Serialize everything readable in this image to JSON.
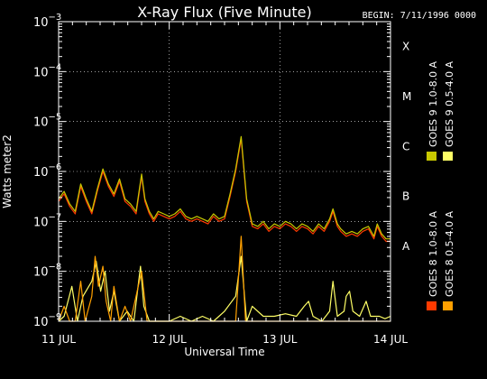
{
  "chart_data": {
    "type": "line",
    "title": "X-Ray Flux (Five Minute)",
    "begin_label": "BEGIN: 7/11/1996 0000",
    "xlabel": "Universal Time",
    "ylabel": "Watts meter2",
    "yscale": "log",
    "ylim": [
      1e-09,
      0.001
    ],
    "x_unit": "days",
    "xlim": [
      0,
      3
    ],
    "x_ticks": [
      {
        "x": 0,
        "label": "11 JUL"
      },
      {
        "x": 1,
        "label": "12 JUL"
      },
      {
        "x": 2,
        "label": "13 JUL"
      },
      {
        "x": 3,
        "label": "14 JUL"
      }
    ],
    "y_ticks": [
      {
        "exp": -9,
        "base": "10",
        "sup": "−9"
      },
      {
        "exp": -8,
        "base": "10",
        "sup": "−8"
      },
      {
        "exp": -7,
        "base": "10",
        "sup": "−7"
      },
      {
        "exp": -6,
        "base": "10",
        "sup": "−6"
      },
      {
        "exp": -5,
        "base": "10",
        "sup": "−5"
      },
      {
        "exp": -4,
        "base": "10",
        "sup": "−4"
      },
      {
        "exp": -3,
        "base": "10",
        "sup": "−3"
      }
    ],
    "flare_classes": [
      {
        "label": "A",
        "exp": -8
      },
      {
        "label": "B",
        "exp": -7
      },
      {
        "label": "C",
        "exp": -6
      },
      {
        "label": "M",
        "exp": -5
      },
      {
        "label": "X",
        "exp": -4
      }
    ],
    "grid": "dotted",
    "legend_placement": "right-vertical",
    "series": [
      {
        "name": "GOES 8 1.0-8.0 A",
        "color": "#ff3a00",
        "points": [
          [
            0,
            -6.6
          ],
          [
            0.05,
            -6.45
          ],
          [
            0.1,
            -6.7
          ],
          [
            0.15,
            -6.85
          ],
          [
            0.2,
            -6.3
          ],
          [
            0.25,
            -6.6
          ],
          [
            0.3,
            -6.85
          ],
          [
            0.35,
            -6.4
          ],
          [
            0.4,
            -6.0
          ],
          [
            0.45,
            -6.3
          ],
          [
            0.5,
            -6.5
          ],
          [
            0.55,
            -6.2
          ],
          [
            0.6,
            -6.6
          ],
          [
            0.65,
            -6.7
          ],
          [
            0.7,
            -6.85
          ],
          [
            0.75,
            -6.1
          ],
          [
            0.78,
            -6.6
          ],
          [
            0.82,
            -6.85
          ],
          [
            0.86,
            -7.0
          ],
          [
            0.9,
            -6.85
          ],
          [
            0.95,
            -6.9
          ],
          [
            1.0,
            -6.95
          ],
          [
            1.05,
            -6.9
          ],
          [
            1.1,
            -6.8
          ],
          [
            1.15,
            -6.95
          ],
          [
            1.2,
            -7.0
          ],
          [
            1.25,
            -6.95
          ],
          [
            1.3,
            -7.0
          ],
          [
            1.35,
            -7.05
          ],
          [
            1.4,
            -6.9
          ],
          [
            1.45,
            -7.0
          ],
          [
            1.5,
            -6.95
          ],
          [
            1.55,
            -6.5
          ],
          [
            1.6,
            -6.0
          ],
          [
            1.65,
            -5.35
          ],
          [
            1.7,
            -6.6
          ],
          [
            1.75,
            -7.1
          ],
          [
            1.8,
            -7.15
          ],
          [
            1.85,
            -7.05
          ],
          [
            1.9,
            -7.2
          ],
          [
            1.95,
            -7.1
          ],
          [
            2.0,
            -7.15
          ],
          [
            2.05,
            -7.05
          ],
          [
            2.1,
            -7.1
          ],
          [
            2.15,
            -7.2
          ],
          [
            2.2,
            -7.1
          ],
          [
            2.25,
            -7.15
          ],
          [
            2.3,
            -7.25
          ],
          [
            2.35,
            -7.1
          ],
          [
            2.4,
            -7.2
          ],
          [
            2.45,
            -7.0
          ],
          [
            2.48,
            -6.8
          ],
          [
            2.52,
            -7.1
          ],
          [
            2.55,
            -7.2
          ],
          [
            2.6,
            -7.3
          ],
          [
            2.65,
            -7.25
          ],
          [
            2.7,
            -7.3
          ],
          [
            2.75,
            -7.2
          ],
          [
            2.8,
            -7.15
          ],
          [
            2.85,
            -7.35
          ],
          [
            2.88,
            -7.1
          ],
          [
            2.92,
            -7.3
          ],
          [
            2.96,
            -7.4
          ],
          [
            3.0,
            -7.4
          ]
        ]
      },
      {
        "name": "GOES 8 0.5-4.0 A",
        "color": "#ffa000",
        "points": [
          [
            0,
            -9.0
          ],
          [
            0.05,
            -8.7
          ],
          [
            0.1,
            -9.0
          ],
          [
            0.15,
            -9.0
          ],
          [
            0.2,
            -8.2
          ],
          [
            0.24,
            -9.0
          ],
          [
            0.3,
            -8.5
          ],
          [
            0.33,
            -7.7
          ],
          [
            0.36,
            -8.3
          ],
          [
            0.4,
            -7.9
          ],
          [
            0.43,
            -8.6
          ],
          [
            0.47,
            -9.0
          ],
          [
            0.5,
            -8.3
          ],
          [
            0.55,
            -9.0
          ],
          [
            0.6,
            -8.7
          ],
          [
            0.65,
            -9.0
          ],
          [
            0.75,
            -8.0
          ],
          [
            0.8,
            -9.0
          ],
          [
            0.9,
            -9.0
          ],
          [
            1.5,
            -9.0
          ],
          [
            1.6,
            -9.0
          ],
          [
            1.65,
            -7.3
          ],
          [
            1.69,
            -9.0
          ],
          [
            3.0,
            -9.0
          ]
        ]
      },
      {
        "name": "GOES 9 0.5-4.0 A",
        "color": "#ffff66",
        "points": [
          [
            0,
            -9.0
          ],
          [
            0.05,
            -8.9
          ],
          [
            0.12,
            -8.3
          ],
          [
            0.17,
            -9.0
          ],
          [
            0.22,
            -8.5
          ],
          [
            0.3,
            -8.2
          ],
          [
            0.34,
            -7.8
          ],
          [
            0.38,
            -8.4
          ],
          [
            0.42,
            -8.0
          ],
          [
            0.46,
            -8.8
          ],
          [
            0.5,
            -8.4
          ],
          [
            0.55,
            -9.0
          ],
          [
            0.62,
            -8.8
          ],
          [
            0.68,
            -9.0
          ],
          [
            0.74,
            -7.9
          ],
          [
            0.77,
            -8.7
          ],
          [
            0.82,
            -9.0
          ],
          [
            0.9,
            -9.0
          ],
          [
            1.0,
            -9.0
          ],
          [
            1.1,
            -8.9
          ],
          [
            1.2,
            -9.0
          ],
          [
            1.3,
            -8.9
          ],
          [
            1.4,
            -9.0
          ],
          [
            1.5,
            -8.8
          ],
          [
            1.6,
            -8.5
          ],
          [
            1.65,
            -7.7
          ],
          [
            1.7,
            -9.0
          ],
          [
            1.75,
            -8.7
          ],
          [
            1.85,
            -8.9
          ],
          [
            1.95,
            -8.9
          ],
          [
            2.05,
            -8.85
          ],
          [
            2.15,
            -8.9
          ],
          [
            2.22,
            -8.7
          ],
          [
            2.26,
            -8.6
          ],
          [
            2.3,
            -8.9
          ],
          [
            2.38,
            -9.0
          ],
          [
            2.45,
            -8.8
          ],
          [
            2.48,
            -8.2
          ],
          [
            2.52,
            -8.9
          ],
          [
            2.58,
            -8.8
          ],
          [
            2.6,
            -8.5
          ],
          [
            2.63,
            -8.4
          ],
          [
            2.66,
            -8.8
          ],
          [
            2.72,
            -8.9
          ],
          [
            2.78,
            -8.6
          ],
          [
            2.82,
            -8.9
          ],
          [
            2.9,
            -8.9
          ],
          [
            2.95,
            -8.95
          ],
          [
            3.0,
            -8.9
          ]
        ]
      },
      {
        "name": "GOES 9 1.0-8.0 A",
        "color": "#c8c800",
        "points": [
          [
            0,
            -6.55
          ],
          [
            0.05,
            -6.4
          ],
          [
            0.1,
            -6.65
          ],
          [
            0.15,
            -6.8
          ],
          [
            0.2,
            -6.25
          ],
          [
            0.25,
            -6.55
          ],
          [
            0.3,
            -6.8
          ],
          [
            0.35,
            -6.35
          ],
          [
            0.4,
            -5.95
          ],
          [
            0.45,
            -6.25
          ],
          [
            0.5,
            -6.45
          ],
          [
            0.55,
            -6.15
          ],
          [
            0.6,
            -6.55
          ],
          [
            0.65,
            -6.65
          ],
          [
            0.7,
            -6.8
          ],
          [
            0.75,
            -6.05
          ],
          [
            0.78,
            -6.55
          ],
          [
            0.82,
            -6.8
          ],
          [
            0.86,
            -6.95
          ],
          [
            0.9,
            -6.8
          ],
          [
            0.95,
            -6.85
          ],
          [
            1.0,
            -6.9
          ],
          [
            1.05,
            -6.85
          ],
          [
            1.1,
            -6.75
          ],
          [
            1.15,
            -6.9
          ],
          [
            1.2,
            -6.95
          ],
          [
            1.25,
            -6.9
          ],
          [
            1.3,
            -6.95
          ],
          [
            1.35,
            -7.0
          ],
          [
            1.4,
            -6.85
          ],
          [
            1.45,
            -6.95
          ],
          [
            1.5,
            -6.9
          ],
          [
            1.55,
            -6.45
          ],
          [
            1.6,
            -5.95
          ],
          [
            1.65,
            -5.3
          ],
          [
            1.7,
            -6.55
          ],
          [
            1.75,
            -7.05
          ],
          [
            1.8,
            -7.1
          ],
          [
            1.85,
            -7.0
          ],
          [
            1.9,
            -7.15
          ],
          [
            1.95,
            -7.05
          ],
          [
            2.0,
            -7.1
          ],
          [
            2.05,
            -7.0
          ],
          [
            2.1,
            -7.05
          ],
          [
            2.15,
            -7.15
          ],
          [
            2.2,
            -7.05
          ],
          [
            2.25,
            -7.1
          ],
          [
            2.3,
            -7.2
          ],
          [
            2.35,
            -7.05
          ],
          [
            2.4,
            -7.15
          ],
          [
            2.45,
            -6.95
          ],
          [
            2.48,
            -6.75
          ],
          [
            2.52,
            -7.05
          ],
          [
            2.55,
            -7.15
          ],
          [
            2.6,
            -7.25
          ],
          [
            2.65,
            -7.2
          ],
          [
            2.7,
            -7.25
          ],
          [
            2.75,
            -7.15
          ],
          [
            2.8,
            -7.1
          ],
          [
            2.85,
            -7.3
          ],
          [
            2.88,
            -7.05
          ],
          [
            2.92,
            -7.25
          ],
          [
            2.96,
            -7.35
          ],
          [
            3.0,
            -7.35
          ]
        ]
      }
    ]
  }
}
